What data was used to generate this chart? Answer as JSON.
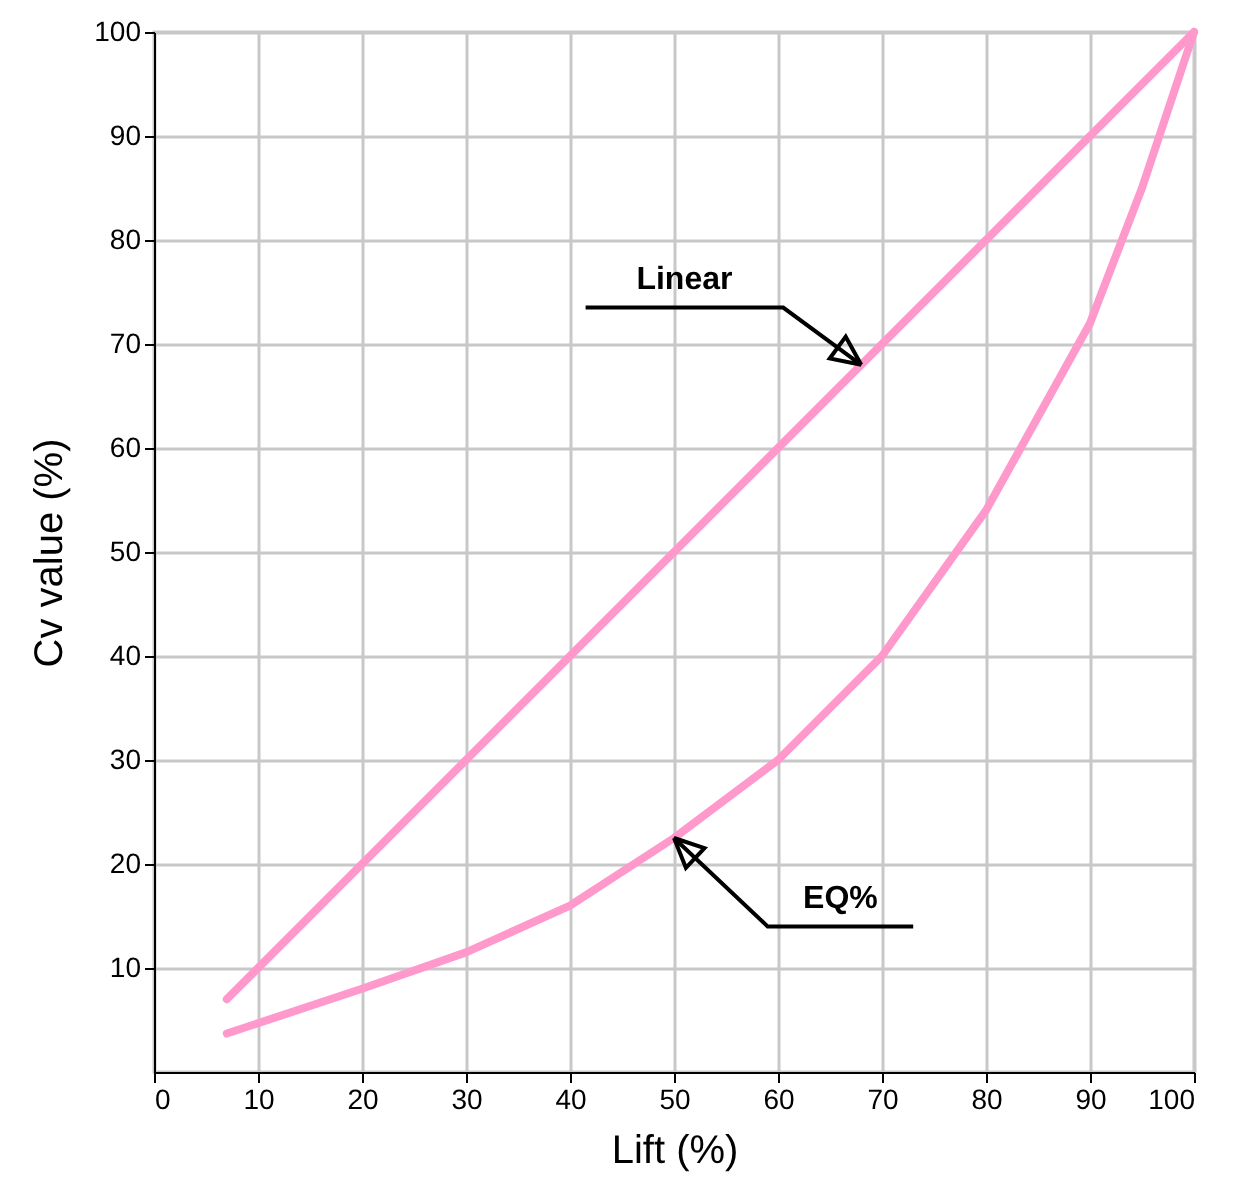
{
  "chart_data": {
    "type": "line",
    "xlabel": "Lift (%)",
    "ylabel": "Cv value (%)",
    "xlim": [
      0,
      100
    ],
    "ylim": [
      0,
      100
    ],
    "xticks": [
      0,
      10,
      20,
      30,
      40,
      50,
      60,
      70,
      80,
      90,
      100
    ],
    "yticks": [
      10,
      20,
      30,
      40,
      50,
      60,
      70,
      80,
      90,
      100
    ],
    "grid": true,
    "marker": "none",
    "line_style": "solid",
    "annotations": [
      {
        "text": "Linear",
        "x": 68,
        "y": 68
      },
      {
        "text": "EQ%",
        "x": 50,
        "y": 22.5
      }
    ],
    "series": [
      {
        "color": "#ff99cc",
        "x": [
          7,
          100
        ],
        "values": [
          7,
          100
        ]
      },
      {
        "color": "#ff99cc",
        "x": [
          7,
          20,
          30,
          40,
          50,
          60,
          70,
          80,
          90,
          95,
          100
        ],
        "values": [
          3.7,
          8,
          11.5,
          16,
          22.5,
          30,
          40,
          54,
          72,
          85,
          100
        ]
      }
    ]
  }
}
